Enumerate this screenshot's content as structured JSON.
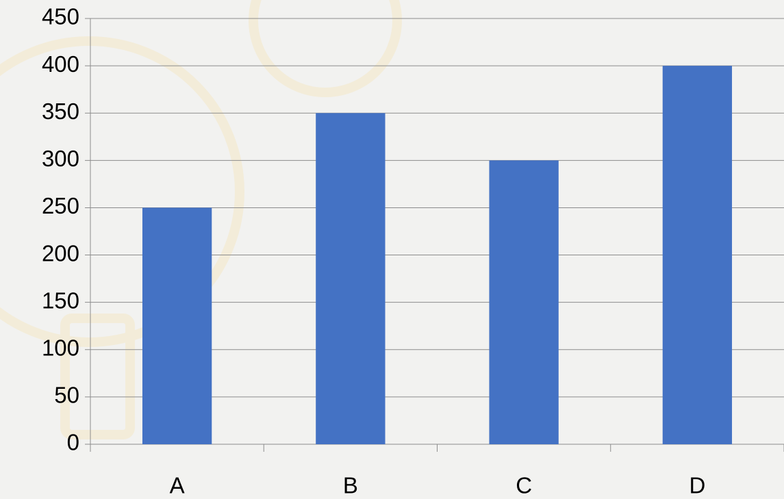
{
  "chart_data": {
    "type": "bar",
    "categories": [
      "A",
      "B",
      "C",
      "D"
    ],
    "values": [
      250,
      350,
      300,
      400
    ],
    "color": "#4472c4",
    "ylim": [
      0,
      450
    ],
    "yticks": [
      0,
      50,
      100,
      150,
      200,
      250,
      300,
      350,
      400,
      450
    ],
    "grid": true
  }
}
